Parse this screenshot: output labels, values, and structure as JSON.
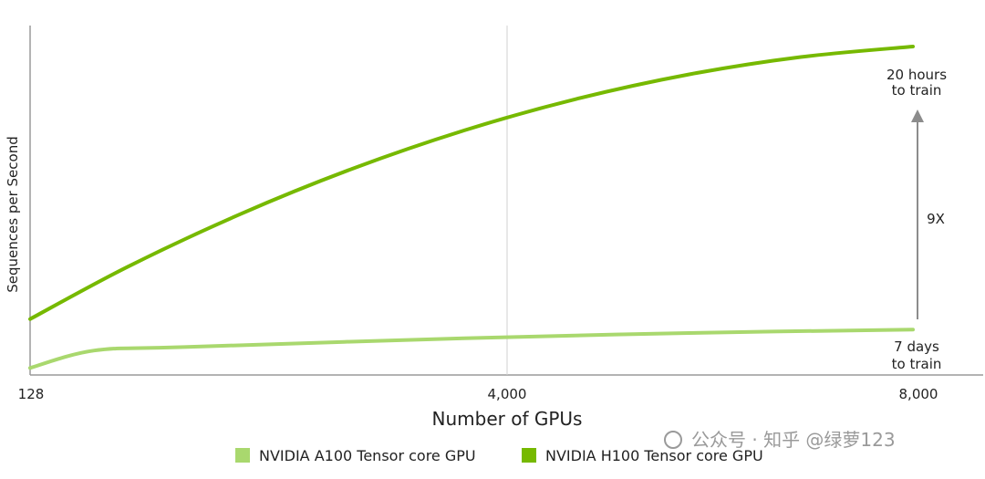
{
  "chart_data": {
    "type": "line",
    "xlabel": "Number of GPUs",
    "ylabel": "Sequences per Second",
    "x_ticks": [
      "128",
      "4,000",
      "8,000"
    ],
    "xlim": [
      128,
      8000
    ],
    "ylim": [
      0,
      100
    ],
    "grid": "vertical line at 4,000",
    "legend_position": "bottom-center",
    "series": [
      {
        "name": "NVIDIA A100 Tensor core GPU",
        "color": "#a9d86e",
        "x": [
          128,
          700,
          1500,
          4000,
          6000,
          8000
        ],
        "y": [
          2,
          7,
          8,
          10.5,
          12,
          13
        ]
      },
      {
        "name": "NVIDIA H100 Tensor core GPU",
        "color": "#76b900",
        "x": [
          128,
          1000,
          2000,
          3000,
          4000,
          5000,
          6000,
          7000,
          8000
        ],
        "y": [
          16,
          31,
          46,
          59,
          70,
          79,
          86,
          91,
          94
        ]
      }
    ],
    "annotations": {
      "top_label": [
        "20 hours",
        "to train"
      ],
      "bottom_label": [
        "7 days",
        "to train"
      ],
      "ratio_label": "9X"
    }
  },
  "watermark": "公众号 · 知乎 @绿萝123"
}
